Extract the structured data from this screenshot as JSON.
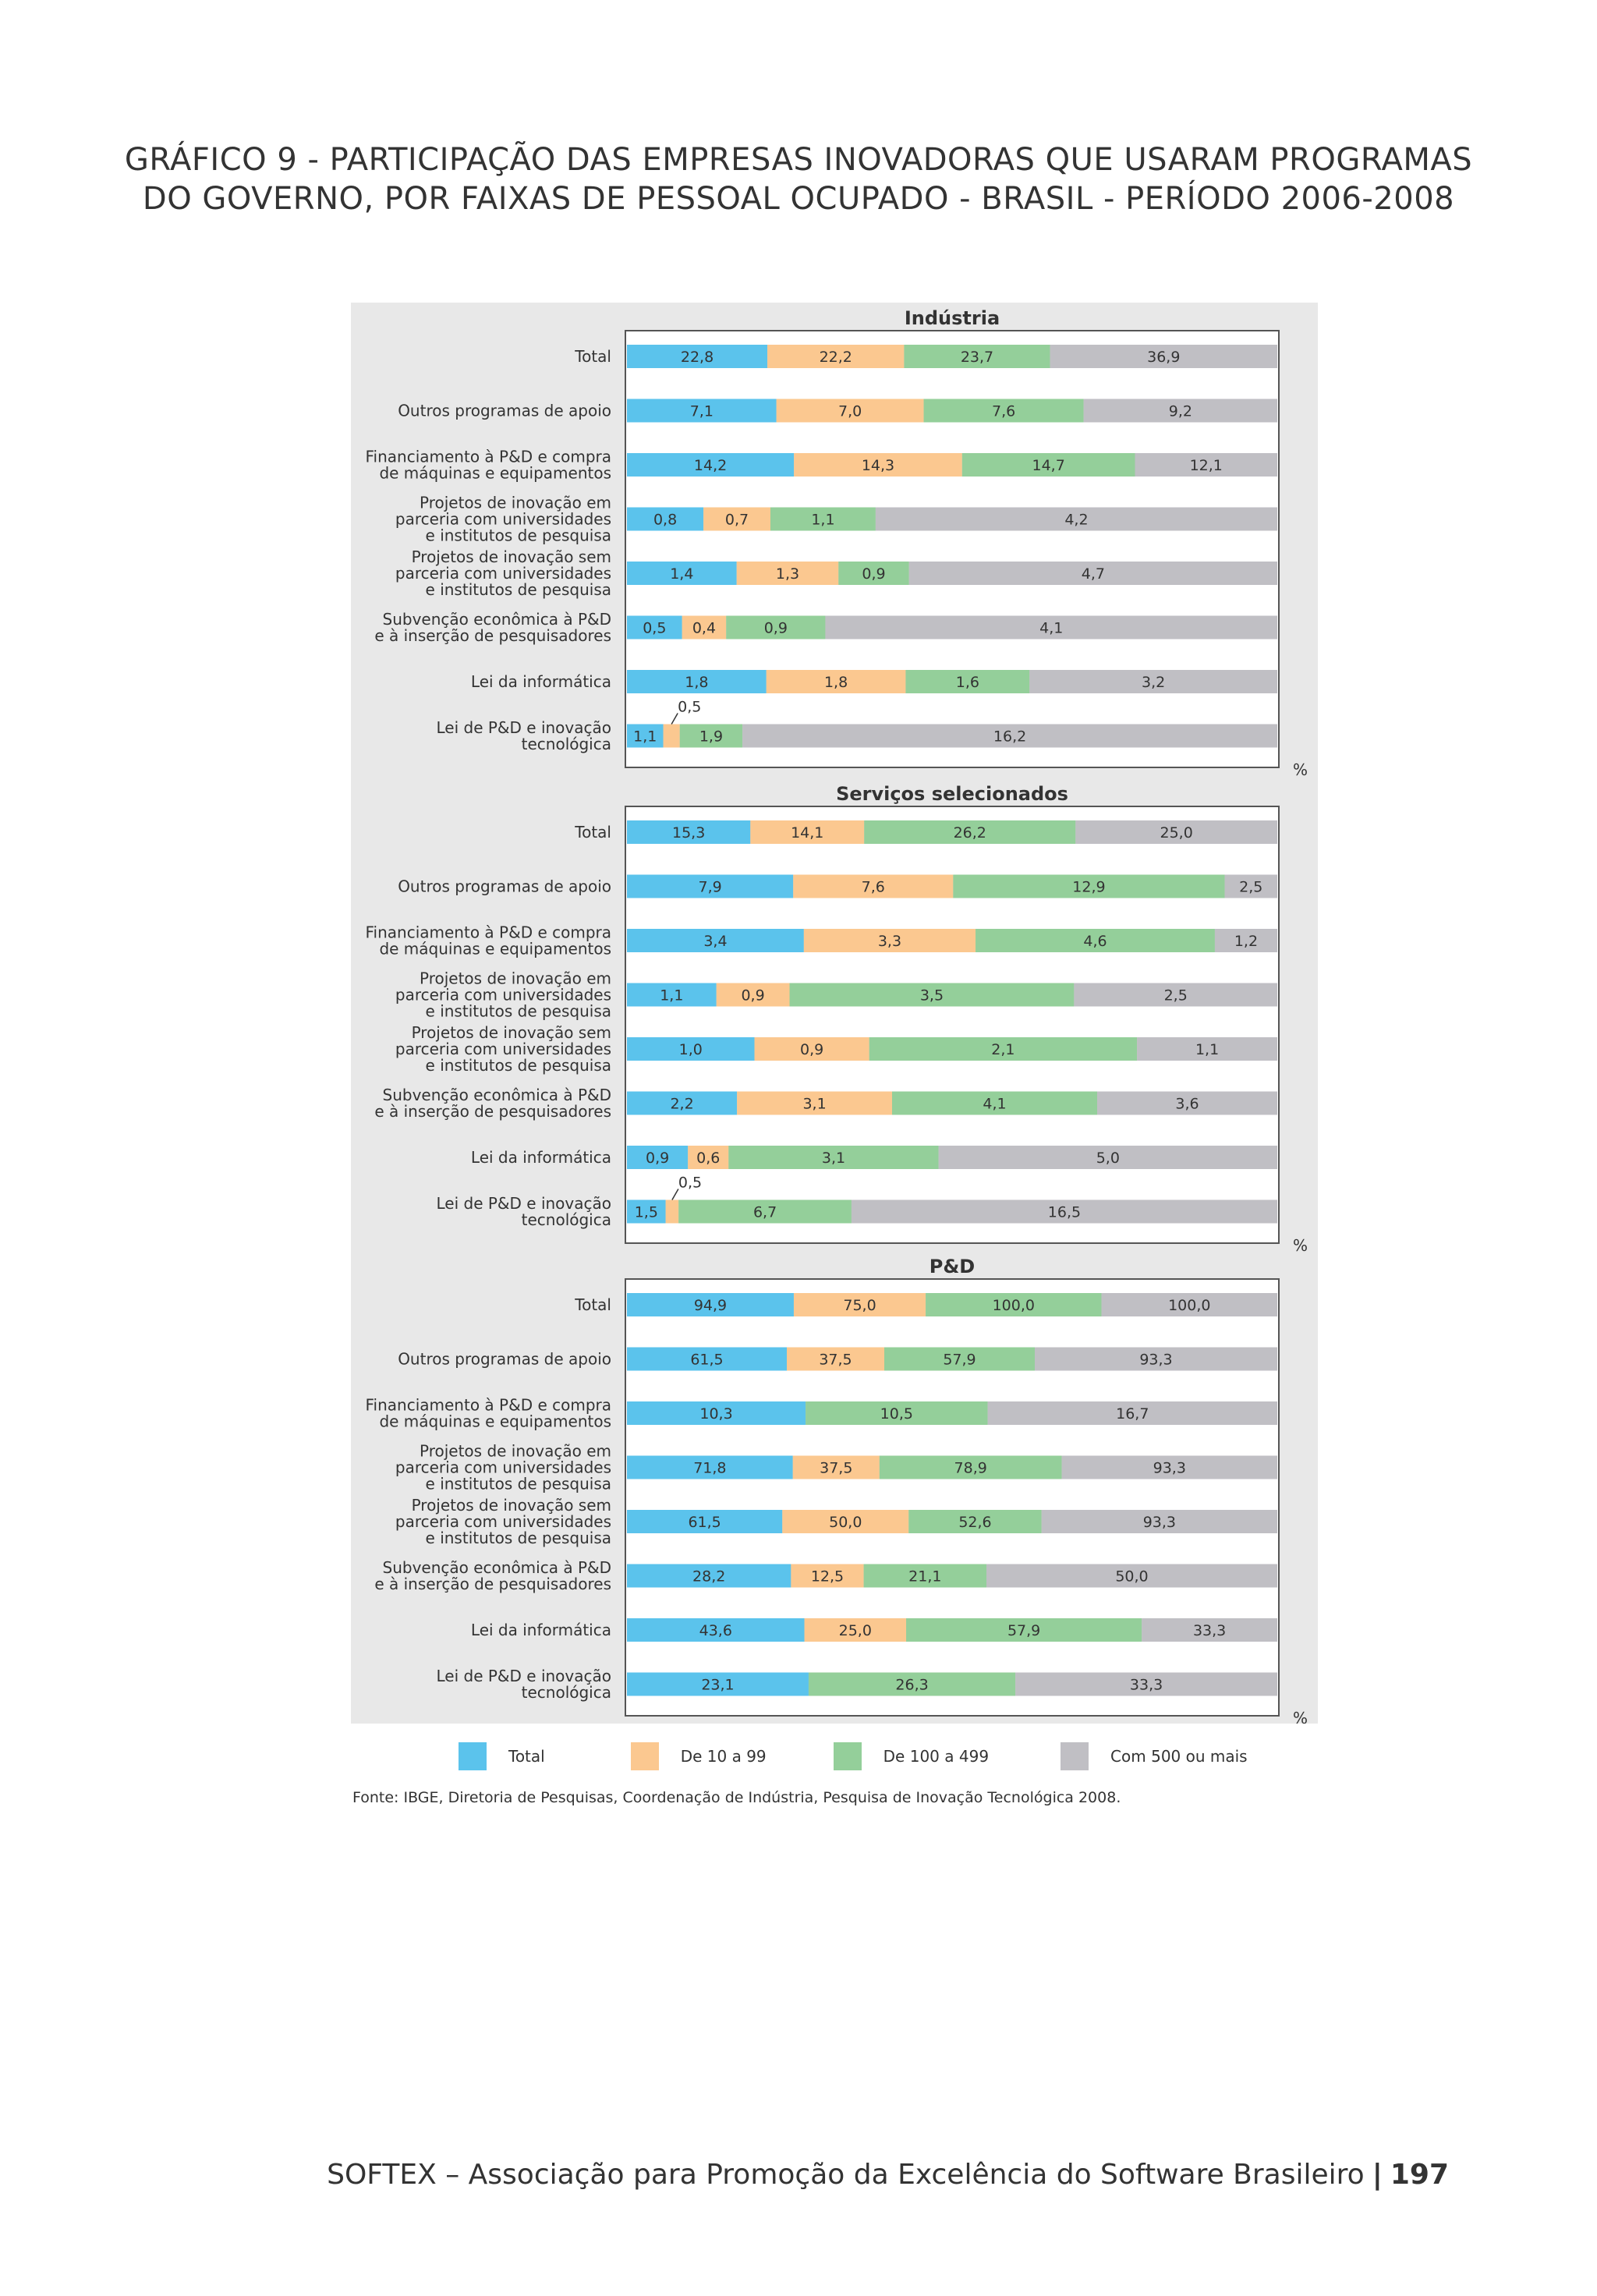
{
  "title": {
    "line1": "GRÁFICO 9 - PARTICIPAÇÃO DAS EMPRESAS INOVADORAS QUE USARAM PROGRAMAS",
    "line2": "DO GOVERNO, POR FAIXAS DE PESSOAL OCUPADO - BRASIL - PERÍODO 2006-2008"
  },
  "colors": {
    "Total": "#5bc3ec",
    "De 10 a 99": "#fbc890",
    "De 100 a 499": "#94cf9a",
    "Com 500 ou mais": "#c0bfc4",
    "panel_background": "#e8e8e8"
  },
  "chart_data": [
    {
      "type": "bar",
      "stacked": true,
      "orientation": "horizontal",
      "title": "Indústria",
      "unit": "%",
      "categories": [
        "Total",
        "Outros programas de apoio",
        "Financiamento à P&D e compra de máquinas e equipamentos",
        "Projetos de inovação em parceria com universidades e institutos de pesquisa",
        "Projetos de inovação sem parceria com universidades e institutos de pesquisa",
        "Subvenção econômica à P&D e à inserção de pesquisadores",
        "Lei da informática",
        "Lei de P&D e inovação tecnológica"
      ],
      "series": [
        {
          "name": "Total",
          "values": [
            22.8,
            7.1,
            14.2,
            0.8,
            1.4,
            0.5,
            1.8,
            1.1
          ]
        },
        {
          "name": "De 10 a 99",
          "values": [
            22.2,
            7.0,
            14.3,
            0.7,
            1.3,
            0.4,
            1.8,
            0.5
          ]
        },
        {
          "name": "De 100 a 499",
          "values": [
            23.7,
            7.6,
            14.7,
            1.1,
            0.9,
            0.9,
            1.6,
            1.9
          ]
        },
        {
          "name": "Com 500 ou mais",
          "values": [
            36.9,
            9.2,
            12.1,
            4.2,
            4.7,
            4.1,
            3.2,
            16.2
          ]
        }
      ]
    },
    {
      "type": "bar",
      "stacked": true,
      "orientation": "horizontal",
      "title": "Serviços selecionados",
      "unit": "%",
      "categories": [
        "Total",
        "Outros programas de apoio",
        "Financiamento à P&D e compra de máquinas e equipamentos",
        "Projetos de inovação em parceria com universidades e institutos de pesquisa",
        "Projetos de inovação sem parceria com universidades e institutos de pesquisa",
        "Subvenção econômica à P&D e à inserção de pesquisadores",
        "Lei da informática",
        "Lei de P&D e inovação tecnológica"
      ],
      "series": [
        {
          "name": "Total",
          "values": [
            15.3,
            7.9,
            3.4,
            1.1,
            1.0,
            2.2,
            0.9,
            1.5
          ]
        },
        {
          "name": "De 10 a 99",
          "values": [
            14.1,
            7.6,
            3.3,
            0.9,
            0.9,
            3.1,
            0.6,
            0.5
          ]
        },
        {
          "name": "De 100 a 499",
          "values": [
            26.2,
            12.9,
            4.6,
            3.5,
            2.1,
            4.1,
            3.1,
            6.7
          ]
        },
        {
          "name": "Com 500 ou mais",
          "values": [
            25.0,
            2.5,
            1.2,
            2.5,
            1.1,
            3.6,
            5.0,
            16.5
          ]
        }
      ]
    },
    {
      "type": "bar",
      "stacked": true,
      "orientation": "horizontal",
      "title": "P&D",
      "unit": "%",
      "categories": [
        "Total",
        "Outros programas de apoio",
        "Financiamento à P&D e compra de máquinas e equipamentos",
        "Projetos de inovação em parceria com universidades e institutos de pesquisa",
        "Projetos de inovação sem parceria com universidades e institutos de pesquisa",
        "Subvenção econômica à P&D e à inserção de pesquisadores",
        "Lei da informática",
        "Lei de P&D e inovação tecnológica"
      ],
      "series": [
        {
          "name": "Total",
          "values": [
            94.9,
            61.5,
            10.3,
            71.8,
            61.5,
            28.2,
            43.6,
            23.1
          ]
        },
        {
          "name": "De 10 a 99",
          "values": [
            75.0,
            37.5,
            null,
            37.5,
            50.0,
            12.5,
            25.0,
            null
          ]
        },
        {
          "name": "De 100 a 499",
          "values": [
            100.0,
            57.9,
            10.5,
            78.9,
            52.6,
            21.1,
            57.9,
            26.3
          ]
        },
        {
          "name": "Com 500 ou mais",
          "values": [
            100.0,
            93.3,
            16.7,
            93.3,
            93.3,
            50.0,
            33.3,
            33.3
          ]
        }
      ]
    }
  ],
  "legend": [
    {
      "label": "Total",
      "color": "#5bc3ec"
    },
    {
      "label": "De 10 a 99",
      "color": "#fbc890"
    },
    {
      "label": "De 100 a 499",
      "color": "#94cf9a"
    },
    {
      "label": "Com 500 ou mais",
      "color": "#c0bfc4"
    }
  ],
  "source": "Fonte: IBGE, Diretoria de Pesquisas, Coordenação de Indústria, Pesquisa de Inovação Tecnológica 2008.",
  "footer": {
    "text": "SOFTEX – Associação para Promoção da Excelência do Software Brasileiro",
    "page_number": "197"
  }
}
